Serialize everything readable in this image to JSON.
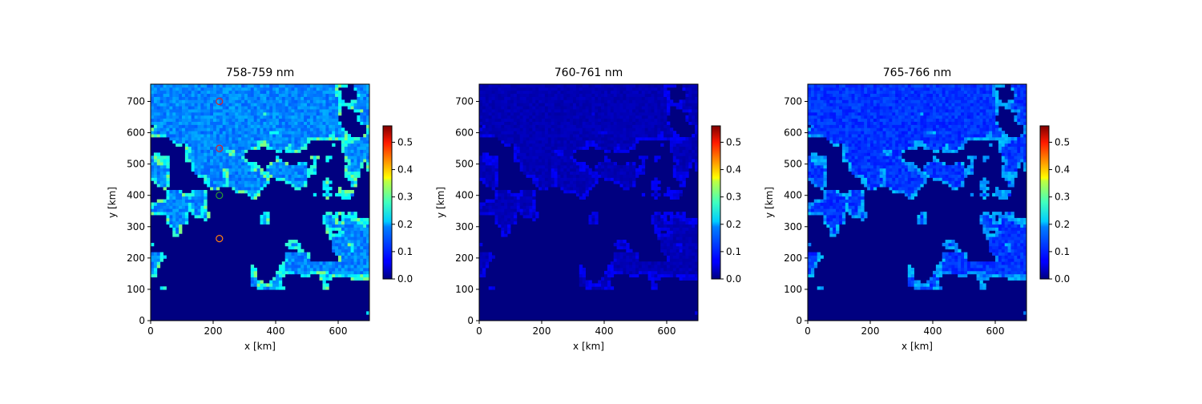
{
  "chart_data": [
    {
      "type": "heatmap",
      "title": "758-759 nm",
      "xlabel": "x [km]",
      "ylabel": "y [km]",
      "xlim": [
        0,
        700
      ],
      "ylim": [
        0,
        755
      ],
      "x_ticks": [
        "0",
        "200",
        "400",
        "600"
      ],
      "y_ticks": [
        "0",
        "100",
        "200",
        "300",
        "400",
        "500",
        "600",
        "700"
      ],
      "colorbar": {
        "min": 0.0,
        "max": 0.56,
        "ticks": [
          "0.0",
          "0.1",
          "0.2",
          "0.3",
          "0.4",
          "0.5"
        ],
        "colormap": "jet"
      },
      "markers": [
        {
          "x": 220,
          "y": 700,
          "color": "#d62728"
        },
        {
          "x": 220,
          "y": 550,
          "color": "#d62728"
        },
        {
          "x": 220,
          "y": 400,
          "color": "#2ca02c"
        },
        {
          "x": 220,
          "y": 262,
          "color": "#ff7f0e"
        }
      ],
      "typical_clear_value": 0.12,
      "typical_cloud_value": 0.2
    },
    {
      "type": "heatmap",
      "title": "760-761 nm",
      "xlabel": "x [km]",
      "ylabel": "y [km]",
      "xlim": [
        0,
        700
      ],
      "ylim": [
        0,
        755
      ],
      "x_ticks": [
        "0",
        "200",
        "400",
        "600"
      ],
      "y_ticks": [
        "0",
        "100",
        "200",
        "300",
        "400",
        "500",
        "600",
        "700"
      ],
      "colorbar": {
        "min": 0.0,
        "max": 0.56,
        "ticks": [
          "0.0",
          "0.1",
          "0.2",
          "0.3",
          "0.4",
          "0.5"
        ],
        "colormap": "jet"
      },
      "typical_clear_value": 0.02,
      "typical_cloud_value": 0.05
    },
    {
      "type": "heatmap",
      "title": "765-766 nm",
      "xlabel": "x [km]",
      "ylabel": "y [km]",
      "xlim": [
        0,
        700
      ],
      "ylim": [
        0,
        755
      ],
      "x_ticks": [
        "0",
        "200",
        "400",
        "600"
      ],
      "y_ticks": [
        "0",
        "100",
        "200",
        "300",
        "400",
        "500",
        "600",
        "700"
      ],
      "colorbar": {
        "min": 0.0,
        "max": 0.56,
        "ticks": [
          "0.0",
          "0.1",
          "0.2",
          "0.3",
          "0.4",
          "0.5"
        ],
        "colormap": "jet"
      },
      "typical_clear_value": 0.08,
      "typical_cloud_value": 0.14
    }
  ]
}
